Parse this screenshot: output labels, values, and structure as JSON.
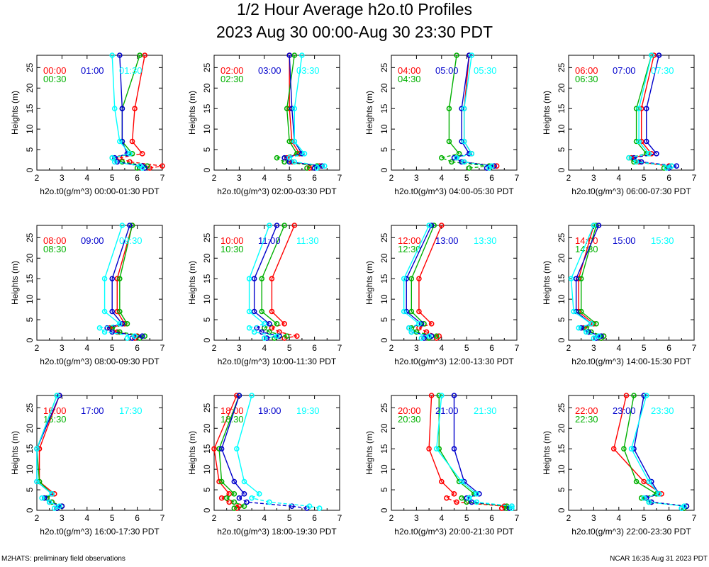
{
  "title": "1/2 Hour Average h2o.t0 Profiles",
  "subtitle": "2023 Aug 30 00:00-Aug 30 23:30 PDT",
  "footer_left": "M2HATS: preliminary field observations",
  "footer_right": "NCAR 16:35 Aug 31 2023 PDT",
  "colors": {
    "first": "#ff0000",
    "second": "#00b000",
    "third": "#0000cc",
    "fourth": "#00ffff"
  },
  "chart_data": [
    {
      "type": "line",
      "xlabel": "h2o.t0(g/m^3) 00:00-01:30 PDT",
      "ylabel": "Heights (m)",
      "xlim": [
        2,
        7
      ],
      "ylim": [
        0,
        28
      ],
      "x_ticks": [
        "2",
        "3",
        "4",
        "5",
        "6",
        "7"
      ],
      "y_ticks": [
        "0",
        "5",
        "10",
        "15",
        "20",
        "25"
      ],
      "heights": [
        0.5,
        1,
        2,
        3,
        4,
        7,
        15,
        28
      ],
      "series": [
        {
          "name": "00:00",
          "values": [
            6.5,
            7.0,
            5.7,
            5.3,
            6.2,
            5.8,
            5.9,
            6.3
          ]
        },
        {
          "name": "00:30",
          "values": [
            6.0,
            6.4,
            5.4,
            5.0,
            5.8,
            5.4,
            5.4,
            6.1
          ]
        },
        {
          "name": "01:00",
          "values": [
            6.3,
            6.2,
            5.2,
            5.1,
            5.6,
            5.4,
            5.4,
            5.3
          ]
        },
        {
          "name": "01:30",
          "values": [
            6.2,
            6.1,
            5.1,
            5.0,
            5.7,
            5.3,
            5.1,
            5.0
          ]
        }
      ]
    },
    {
      "type": "line",
      "xlabel": "h2o.t0(g/m^3) 02:00-03:30 PDT",
      "ylabel": "Heights (m)",
      "xlim": [
        2,
        7
      ],
      "ylim": [
        0,
        28
      ],
      "x_ticks": [
        "2",
        "3",
        "4",
        "5",
        "6",
        "7"
      ],
      "y_ticks": [
        "0",
        "5",
        "10",
        "15",
        "20",
        "25"
      ],
      "heights": [
        0.5,
        1,
        2,
        3,
        4,
        7,
        15,
        28
      ],
      "series": [
        {
          "name": "02:00",
          "values": [
            5.8,
            6.2,
            5.1,
            4.9,
            5.4,
            5.1,
            5.0,
            5.0
          ]
        },
        {
          "name": "02:30",
          "values": [
            5.7,
            6.1,
            4.8,
            4.5,
            5.3,
            5.0,
            4.9,
            5.2
          ]
        },
        {
          "name": "03:00",
          "values": [
            6.0,
            6.3,
            5.0,
            4.8,
            5.5,
            5.2,
            5.1,
            5.0
          ]
        },
        {
          "name": "03:30",
          "values": [
            6.1,
            6.4,
            5.2,
            5.0,
            5.6,
            5.2,
            5.2,
            5.5
          ]
        }
      ]
    },
    {
      "type": "line",
      "xlabel": "h2o.t0(g/m^3) 04:00-05:30 PDT",
      "ylabel": "Heights (m)",
      "xlim": [
        2,
        7
      ],
      "ylim": [
        0,
        28
      ],
      "x_ticks": [
        "2",
        "3",
        "4",
        "5",
        "6",
        "7"
      ],
      "y_ticks": [
        "0",
        "5",
        "10",
        "15",
        "20",
        "25"
      ],
      "heights": [
        0.5,
        1,
        2,
        3,
        4,
        7,
        15,
        28
      ],
      "series": [
        {
          "name": "04:00",
          "values": [
            5.9,
            6.2,
            4.9,
            4.6,
            5.2,
            4.9,
            4.9,
            5.1
          ]
        },
        {
          "name": "04:30",
          "values": [
            5.1,
            5.9,
            4.4,
            4.0,
            4.7,
            4.3,
            4.3,
            4.6
          ]
        },
        {
          "name": "05:00",
          "values": [
            5.8,
            6.1,
            4.8,
            4.5,
            5.1,
            4.8,
            4.8,
            5.1
          ]
        },
        {
          "name": "05:30",
          "values": [
            5.9,
            6.0,
            4.9,
            4.6,
            5.2,
            4.9,
            4.9,
            5.2
          ]
        }
      ]
    },
    {
      "type": "line",
      "xlabel": "h2o.t0(g/m^3) 06:00-07:30 PDT",
      "ylabel": "Heights (m)",
      "xlim": [
        2,
        7
      ],
      "ylim": [
        0,
        28
      ],
      "x_ticks": [
        "2",
        "3",
        "4",
        "5",
        "6",
        "7"
      ],
      "y_ticks": [
        "0",
        "5",
        "10",
        "15",
        "20",
        "25"
      ],
      "heights": [
        0.5,
        1,
        2,
        3,
        4,
        7,
        15,
        28
      ],
      "series": [
        {
          "name": "06:00",
          "values": [
            5.9,
            6.0,
            4.8,
            4.5,
            5.3,
            4.9,
            4.9,
            5.4
          ]
        },
        {
          "name": "06:30",
          "values": [
            5.8,
            6.1,
            4.6,
            4.4,
            5.1,
            4.7,
            4.7,
            5.3
          ]
        },
        {
          "name": "07:00",
          "values": [
            6.0,
            6.3,
            4.9,
            4.6,
            5.5,
            5.1,
            5.1,
            5.6
          ]
        },
        {
          "name": "07:30",
          "values": [
            5.9,
            6.1,
            4.7,
            4.4,
            5.2,
            4.8,
            4.8,
            5.3
          ]
        }
      ]
    },
    {
      "type": "line",
      "xlabel": "h2o.t0(g/m^3) 08:00-09:30 PDT",
      "ylabel": "Heights (m)",
      "xlim": [
        2,
        7
      ],
      "ylim": [
        0,
        28
      ],
      "x_ticks": [
        "2",
        "3",
        "4",
        "5",
        "6",
        "7"
      ],
      "y_ticks": [
        "0",
        "5",
        "10",
        "15",
        "20",
        "25"
      ],
      "heights": [
        0.5,
        1,
        2,
        3,
        4,
        7,
        15,
        28
      ],
      "series": [
        {
          "name": "08:00",
          "values": [
            5.9,
            6.0,
            5.2,
            4.9,
            5.5,
            5.2,
            5.2,
            5.8
          ]
        },
        {
          "name": "08:30",
          "values": [
            6.1,
            6.3,
            5.3,
            5.0,
            5.6,
            5.3,
            5.3,
            5.8
          ]
        },
        {
          "name": "09:00",
          "values": [
            5.8,
            6.2,
            5.0,
            4.8,
            5.4,
            5.0,
            5.0,
            5.7
          ]
        },
        {
          "name": "09:30",
          "values": [
            5.6,
            5.9,
            4.7,
            4.5,
            5.3,
            4.7,
            4.7,
            5.4
          ]
        }
      ]
    },
    {
      "type": "line",
      "xlabel": "h2o.t0(g/m^3) 10:00-11:30 PDT",
      "ylabel": "Heights (m)",
      "xlim": [
        2,
        7
      ],
      "ylim": [
        0,
        28
      ],
      "x_ticks": [
        "2",
        "3",
        "4",
        "5",
        "6",
        "7"
      ],
      "y_ticks": [
        "0",
        "5",
        "10",
        "15",
        "20",
        "25"
      ],
      "heights": [
        0.5,
        1,
        2,
        3,
        4,
        7,
        15,
        28
      ],
      "series": [
        {
          "name": "10:00",
          "values": [
            4.8,
            5.3,
            4.6,
            4.3,
            4.8,
            4.3,
            4.3,
            5.2
          ]
        },
        {
          "name": "10:30",
          "values": [
            4.4,
            4.9,
            4.2,
            4.0,
            4.5,
            3.9,
            3.9,
            4.8
          ]
        },
        {
          "name": "11:00",
          "values": [
            4.1,
            4.6,
            3.9,
            3.7,
            4.2,
            3.6,
            3.6,
            4.5
          ]
        },
        {
          "name": "11:30",
          "values": [
            4.0,
            4.5,
            3.6,
            3.4,
            4.0,
            3.4,
            3.4,
            4.2
          ]
        }
      ]
    },
    {
      "type": "line",
      "xlabel": "h2o.t0(g/m^3) 12:00-13:30 PDT",
      "ylabel": "Heights (m)",
      "xlim": [
        2,
        7
      ],
      "ylim": [
        0,
        28
      ],
      "x_ticks": [
        "2",
        "3",
        "4",
        "5",
        "6",
        "7"
      ],
      "y_ticks": [
        "0",
        "5",
        "10",
        "15",
        "20",
        "25"
      ],
      "heights": [
        0.5,
        1,
        2,
        3,
        4,
        7,
        15,
        28
      ],
      "series": [
        {
          "name": "12:00",
          "values": [
            3.8,
            3.9,
            3.4,
            3.1,
            3.6,
            3.1,
            3.1,
            4.0
          ]
        },
        {
          "name": "12:30",
          "values": [
            3.5,
            3.8,
            3.0,
            2.8,
            3.3,
            2.8,
            2.8,
            3.7
          ]
        },
        {
          "name": "13:00",
          "values": [
            3.3,
            3.6,
            2.8,
            2.7,
            3.2,
            2.6,
            2.6,
            3.6
          ]
        },
        {
          "name": "13:30",
          "values": [
            3.2,
            3.5,
            2.8,
            2.7,
            3.1,
            2.5,
            2.5,
            3.5
          ]
        }
      ]
    },
    {
      "type": "line",
      "xlabel": "h2o.t0(g/m^3) 14:00-15:30 PDT",
      "ylabel": "Heights (m)",
      "xlim": [
        2,
        7
      ],
      "ylim": [
        0,
        28
      ],
      "x_ticks": [
        "2",
        "3",
        "4",
        "5",
        "6",
        "7"
      ],
      "y_ticks": [
        "0",
        "5",
        "10",
        "15",
        "20",
        "25"
      ],
      "heights": [
        0.5,
        1,
        2,
        3,
        4,
        7,
        15,
        28
      ],
      "series": [
        {
          "name": "14:00",
          "values": [
            3.3,
            3.4,
            2.8,
            2.6,
            3.0,
            2.4,
            2.4,
            3.0
          ]
        },
        {
          "name": "14:30",
          "values": [
            3.3,
            3.4,
            2.9,
            2.7,
            3.1,
            2.5,
            2.5,
            3.1
          ]
        },
        {
          "name": "15:00",
          "values": [
            3.1,
            3.3,
            2.8,
            2.5,
            2.9,
            2.3,
            2.3,
            3.2
          ]
        },
        {
          "name": "15:30",
          "values": [
            3.0,
            3.2,
            2.7,
            2.4,
            2.9,
            2.2,
            2.1,
            3.0
          ]
        }
      ]
    },
    {
      "type": "line",
      "xlabel": "h2o.t0(g/m^3) 16:00-17:30 PDT",
      "ylabel": "Heights (m)",
      "xlim": [
        2,
        7
      ],
      "ylim": [
        0,
        28
      ],
      "x_ticks": [
        "2",
        "3",
        "4",
        "5",
        "6",
        "7"
      ],
      "y_ticks": [
        "0",
        "5",
        "10",
        "15",
        "20",
        "25"
      ],
      "heights": [
        0.5,
        1,
        2,
        3,
        4,
        7,
        15,
        28
      ],
      "series": [
        {
          "name": "16:00",
          "values": [
            2.8,
            3.0,
            2.6,
            2.4,
            2.7,
            2.1,
            2.1,
            2.9
          ]
        },
        {
          "name": "16:30",
          "values": [
            2.8,
            3.0,
            2.6,
            2.4,
            2.6,
            2.1,
            2.0,
            2.8
          ]
        },
        {
          "name": "17:00",
          "values": [
            2.8,
            3.0,
            2.5,
            2.3,
            2.6,
            2.0,
            2.0,
            2.9
          ]
        },
        {
          "name": "17:30",
          "values": [
            2.7,
            2.9,
            2.5,
            2.2,
            2.6,
            2.0,
            2.0,
            2.8
          ]
        }
      ]
    },
    {
      "type": "line",
      "xlabel": "h2o.t0(g/m^3) 18:00-19:30 PDT",
      "ylabel": "Heights (m)",
      "xlim": [
        2,
        7
      ],
      "ylim": [
        0,
        28
      ],
      "x_ticks": [
        "2",
        "3",
        "4",
        "5",
        "6",
        "7"
      ],
      "y_ticks": [
        "0",
        "5",
        "10",
        "15",
        "20",
        "25"
      ],
      "heights": [
        0.5,
        1,
        2,
        3,
        4,
        7,
        15,
        28
      ],
      "series": [
        {
          "name": "18:00",
          "values": [
            2.9,
            3.0,
            2.6,
            2.3,
            2.6,
            2.2,
            2.0,
            2.9
          ]
        },
        {
          "name": "18:30",
          "values": [
            2.8,
            3.2,
            2.8,
            2.5,
            2.8,
            2.3,
            2.2,
            3.0
          ]
        },
        {
          "name": "19:00",
          "values": [
            5.7,
            5.1,
            3.3,
            3.0,
            3.2,
            2.8,
            2.3,
            3.0
          ]
        },
        {
          "name": "19:30",
          "values": [
            6.2,
            5.8,
            4.2,
            3.5,
            3.8,
            3.2,
            2.9,
            3.5
          ]
        }
      ]
    },
    {
      "type": "line",
      "xlabel": "h2o.t0(g/m^3) 20:00-21:30 PDT",
      "ylabel": "Heights (m)",
      "xlim": [
        2,
        7
      ],
      "ylim": [
        0,
        28
      ],
      "x_ticks": [
        "2",
        "3",
        "4",
        "5",
        "6",
        "7"
      ],
      "y_ticks": [
        "0",
        "5",
        "10",
        "15",
        "20",
        "25"
      ],
      "heights": [
        0.5,
        1,
        2,
        3,
        4,
        7,
        15,
        28
      ],
      "series": [
        {
          "name": "20:00",
          "values": [
            6.4,
            6.5,
            4.6,
            4.2,
            4.5,
            4.0,
            3.5,
            3.6
          ]
        },
        {
          "name": "20:30",
          "values": [
            6.6,
            6.6,
            5.0,
            4.8,
            5.3,
            4.7,
            3.9,
            3.9
          ]
        },
        {
          "name": "21:00",
          "values": [
            6.7,
            6.8,
            5.2,
            5.0,
            5.5,
            4.9,
            4.5,
            4.5
          ]
        },
        {
          "name": "21:30",
          "values": [
            6.8,
            6.8,
            5.4,
            5.1,
            5.4,
            4.8,
            3.8,
            4.0
          ]
        }
      ]
    },
    {
      "type": "line",
      "xlabel": "h2o.t0(g/m^3) 22:00-23:30 PDT",
      "ylabel": "Heights (m)",
      "xlim": [
        2,
        7
      ],
      "ylim": [
        0,
        28
      ],
      "x_ticks": [
        "2",
        "3",
        "4",
        "5",
        "6",
        "7"
      ],
      "y_ticks": [
        "0",
        "5",
        "10",
        "15",
        "20",
        "25"
      ],
      "heights": [
        0.5,
        1,
        2,
        3,
        4,
        7,
        15,
        28
      ],
      "series": [
        {
          "name": "22:00",
          "values": [
            6.6,
            6.7,
            5.3,
            5.0,
            5.7,
            5.0,
            3.8,
            4.3
          ]
        },
        {
          "name": "22:30",
          "values": [
            6.6,
            6.7,
            5.2,
            4.9,
            5.5,
            4.7,
            4.2,
            4.6
          ]
        },
        {
          "name": "23:00",
          "values": [
            6.5,
            6.7,
            5.3,
            5.1,
            5.6,
            5.3,
            4.6,
            5.0
          ]
        },
        {
          "name": "23:30",
          "values": [
            6.5,
            6.6,
            5.2,
            5.0,
            5.6,
            5.2,
            4.5,
            5.1
          ]
        }
      ]
    }
  ]
}
